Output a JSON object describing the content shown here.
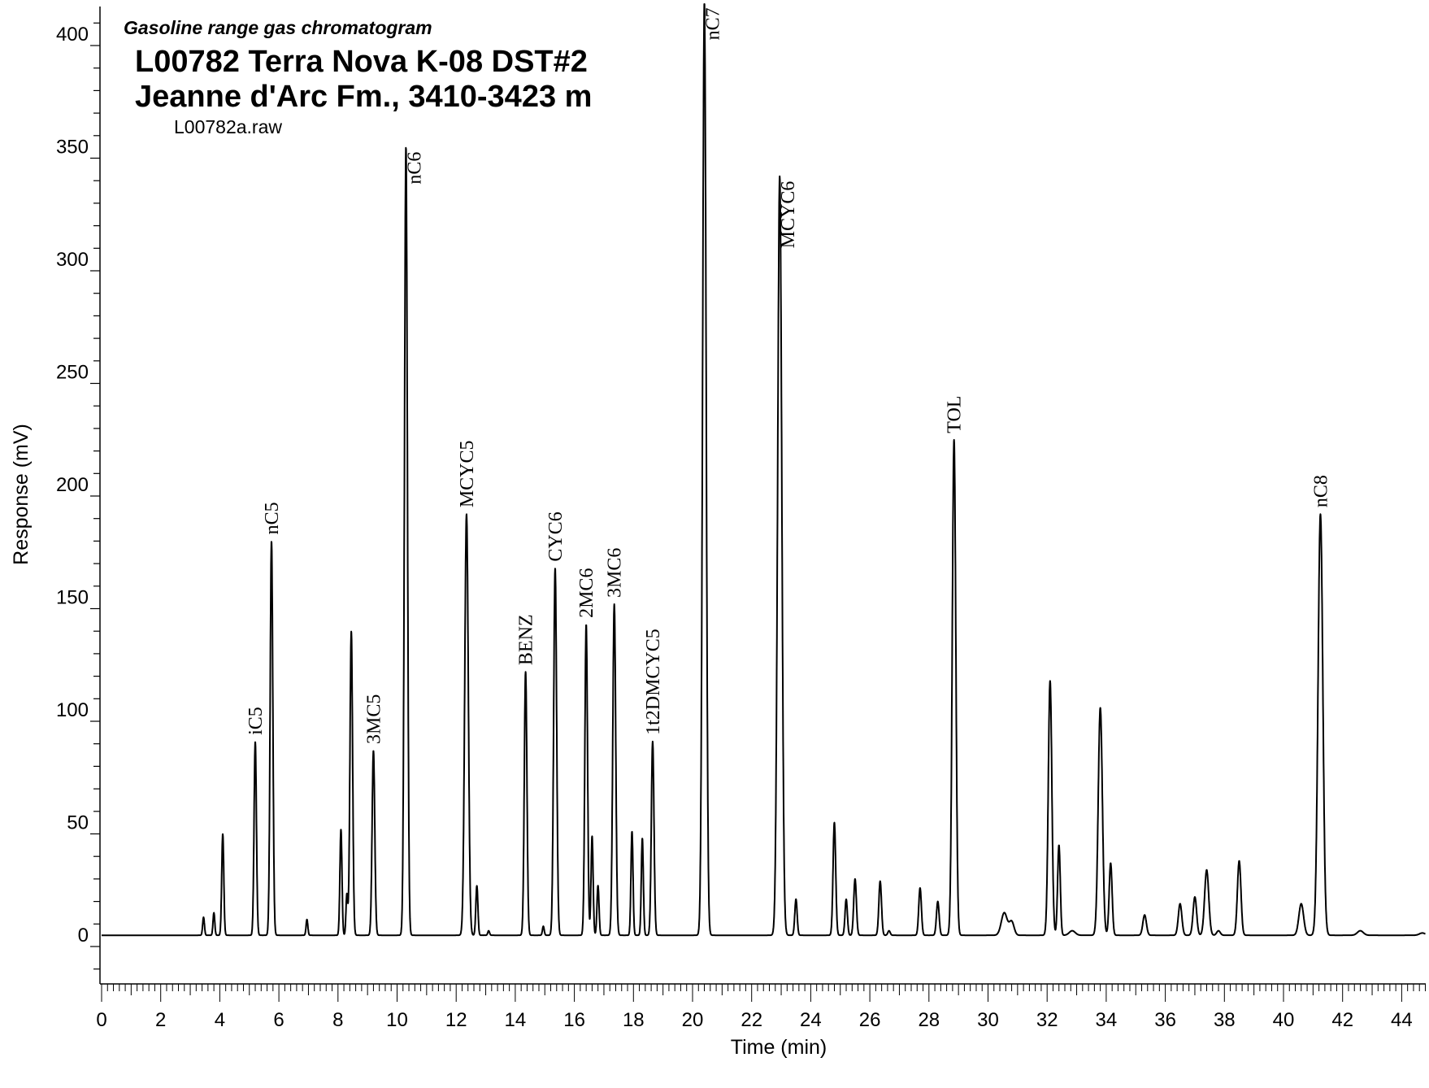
{
  "chart_data": {
    "type": "line",
    "title": "Gasoline range gas chromatogram",
    "subtitle_lines": [
      "L00782 Terra Nova K-08 DST#2",
      "Jeanne d'Arc Fm., 3410-3423 m"
    ],
    "file_label": "L00782a.raw",
    "xlabel": "Time (min)",
    "ylabel": "Response (mV)",
    "xlim": [
      0,
      44.8
    ],
    "ylim": [
      -20,
      420
    ],
    "x_ticks": [
      0,
      2,
      4,
      6,
      8,
      10,
      12,
      14,
      16,
      18,
      20,
      22,
      24,
      26,
      28,
      30,
      32,
      34,
      36,
      38,
      40,
      42,
      44
    ],
    "y_ticks": [
      0,
      50,
      100,
      150,
      200,
      250,
      300,
      350,
      400
    ],
    "baseline": 5,
    "peaks": [
      {
        "t": 3.45,
        "h": 8,
        "w": 0.03
      },
      {
        "t": 3.8,
        "h": 10,
        "w": 0.03
      },
      {
        "t": 4.1,
        "h": 45,
        "w": 0.035
      },
      {
        "t": 5.2,
        "h": 86,
        "w": 0.04,
        "label": "iC5"
      },
      {
        "t": 5.75,
        "h": 175,
        "w": 0.045,
        "label": "nC5"
      },
      {
        "t": 6.95,
        "h": 7,
        "w": 0.03
      },
      {
        "t": 8.1,
        "h": 47,
        "w": 0.035
      },
      {
        "t": 8.3,
        "h": 18,
        "w": 0.03
      },
      {
        "t": 8.45,
        "h": 135,
        "w": 0.045
      },
      {
        "t": 9.2,
        "h": 82,
        "w": 0.045,
        "label": "3MC5"
      },
      {
        "t": 10.3,
        "h": 350,
        "w": 0.05,
        "label": "nC6"
      },
      {
        "t": 12.35,
        "h": 187,
        "w": 0.06,
        "label": "MCYC5"
      },
      {
        "t": 12.7,
        "h": 22,
        "w": 0.035
      },
      {
        "t": 13.1,
        "h": 2,
        "w": 0.03
      },
      {
        "t": 14.35,
        "h": 117,
        "w": 0.045,
        "label": "BENZ"
      },
      {
        "t": 14.95,
        "h": 4,
        "w": 0.03
      },
      {
        "t": 15.35,
        "h": 163,
        "w": 0.05,
        "label": "CYC6"
      },
      {
        "t": 16.4,
        "h": 138,
        "w": 0.045,
        "label": "2MC6"
      },
      {
        "t": 16.6,
        "h": 44,
        "w": 0.035
      },
      {
        "t": 16.8,
        "h": 22,
        "w": 0.035
      },
      {
        "t": 17.35,
        "h": 147,
        "w": 0.05,
        "label": "3MC6"
      },
      {
        "t": 17.95,
        "h": 46,
        "w": 0.035
      },
      {
        "t": 18.3,
        "h": 43,
        "w": 0.035
      },
      {
        "t": 18.65,
        "h": 86,
        "w": 0.045,
        "label": "1t2DMCYC5"
      },
      {
        "t": 20.4,
        "h": 414,
        "w": 0.06,
        "label": "nC7"
      },
      {
        "t": 22.95,
        "h": 337,
        "w": 0.07,
        "label": "MCYC6"
      },
      {
        "t": 23.5,
        "h": 16,
        "w": 0.04
      },
      {
        "t": 24.8,
        "h": 50,
        "w": 0.045
      },
      {
        "t": 25.2,
        "h": 16,
        "w": 0.04
      },
      {
        "t": 25.5,
        "h": 25,
        "w": 0.045
      },
      {
        "t": 26.35,
        "h": 24,
        "w": 0.045
      },
      {
        "t": 26.65,
        "h": 2,
        "w": 0.04
      },
      {
        "t": 27.7,
        "h": 21,
        "w": 0.045
      },
      {
        "t": 28.3,
        "h": 15,
        "w": 0.045
      },
      {
        "t": 28.85,
        "h": 220,
        "w": 0.06,
        "label": "TOL"
      },
      {
        "t": 30.55,
        "h": 10,
        "w": 0.1
      },
      {
        "t": 30.8,
        "h": 6,
        "w": 0.08
      },
      {
        "t": 32.1,
        "h": 113,
        "w": 0.06
      },
      {
        "t": 32.4,
        "h": 40,
        "w": 0.045
      },
      {
        "t": 32.85,
        "h": 2,
        "w": 0.1
      },
      {
        "t": 33.8,
        "h": 101,
        "w": 0.07
      },
      {
        "t": 34.15,
        "h": 32,
        "w": 0.05
      },
      {
        "t": 35.3,
        "h": 9,
        "w": 0.06
      },
      {
        "t": 36.5,
        "h": 14,
        "w": 0.06
      },
      {
        "t": 37.0,
        "h": 17,
        "w": 0.06
      },
      {
        "t": 37.4,
        "h": 29,
        "w": 0.07
      },
      {
        "t": 37.8,
        "h": 2,
        "w": 0.06
      },
      {
        "t": 38.5,
        "h": 33,
        "w": 0.06
      },
      {
        "t": 40.6,
        "h": 14,
        "w": 0.08
      },
      {
        "t": 41.25,
        "h": 187,
        "w": 0.08,
        "label": "nC8"
      },
      {
        "t": 42.6,
        "h": 2,
        "w": 0.1
      },
      {
        "t": 44.7,
        "h": 1,
        "w": 0.1
      }
    ]
  }
}
